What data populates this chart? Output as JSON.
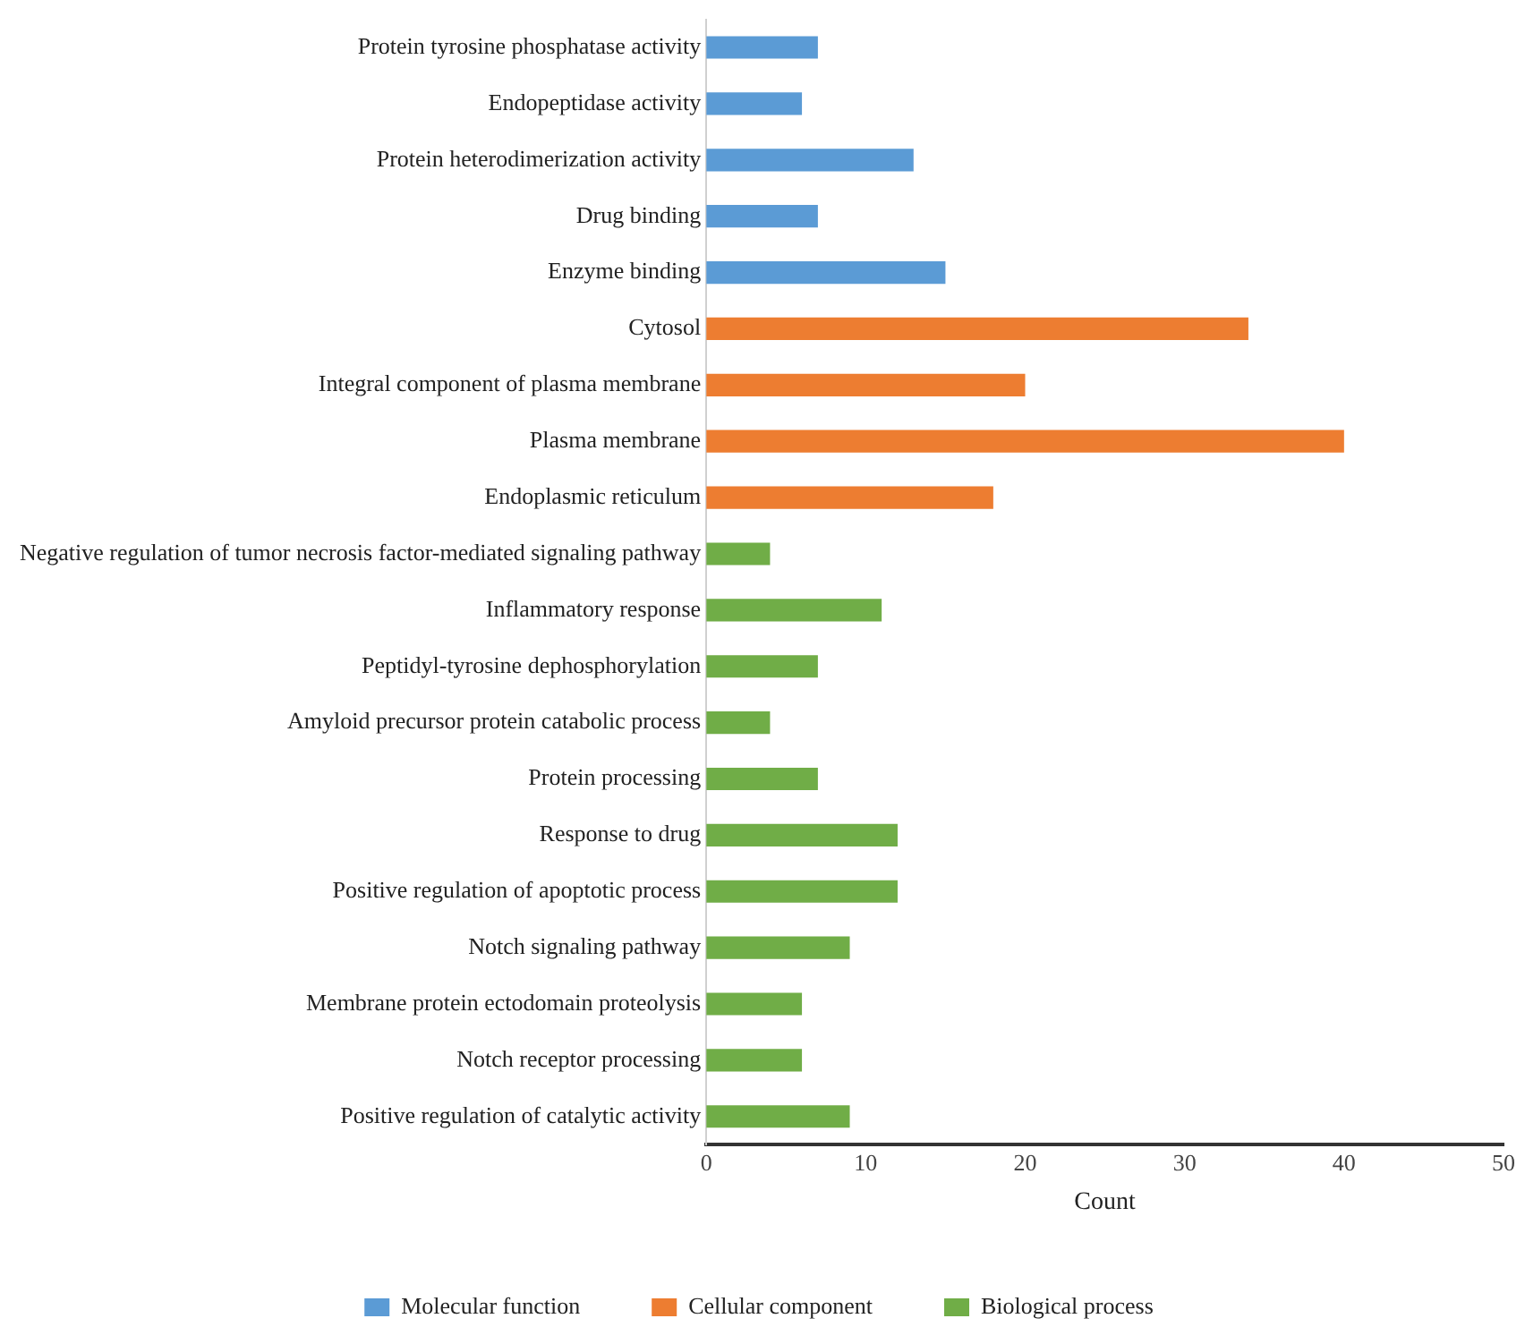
{
  "chart_data": {
    "type": "bar",
    "orientation": "horizontal",
    "stacked": true,
    "xlabel": "Count",
    "categories": [
      "Protein tyrosine phosphatase activity",
      "Endopeptidase activity",
      "Protein heterodimerization activity",
      "Drug binding",
      "Enzyme binding",
      "Cytosol",
      "Integral component of plasma membrane",
      "Plasma membrane",
      "Endoplasmic reticulum",
      "Negative regulation of tumor necrosis factor-mediated signaling pathway",
      "Inflammatory response",
      "Peptidyl-tyrosine dephosphorylation",
      "Amyloid precursor protein catabolic process",
      "Protein processing",
      "Response to drug",
      "Positive regulation of apoptotic process",
      "Notch signaling pathway",
      "Membrane protein ectodomain proteolysis",
      "Notch receptor processing",
      "Positive regulation of catalytic activity"
    ],
    "series": [
      {
        "name": "Molecular function",
        "color": "#5b9bd5",
        "values": [
          7,
          6,
          13,
          7,
          15,
          null,
          null,
          null,
          null,
          null,
          null,
          null,
          null,
          null,
          null,
          null,
          null,
          null,
          null,
          null
        ]
      },
      {
        "name": "Cellular component",
        "color": "#ed7d31",
        "values": [
          null,
          null,
          null,
          null,
          null,
          34,
          20,
          40,
          18,
          null,
          null,
          null,
          null,
          null,
          null,
          null,
          null,
          null,
          null,
          null
        ]
      },
      {
        "name": "Biological process",
        "color": "#70ad47",
        "values": [
          null,
          null,
          null,
          null,
          null,
          null,
          null,
          null,
          null,
          4,
          11,
          7,
          4,
          7,
          12,
          12,
          9,
          6,
          6,
          9
        ]
      }
    ],
    "xlim": [
      0,
      50
    ],
    "xticks": [
      0,
      10,
      20,
      30,
      40,
      50
    ],
    "grid": false,
    "legend": "bottom"
  }
}
